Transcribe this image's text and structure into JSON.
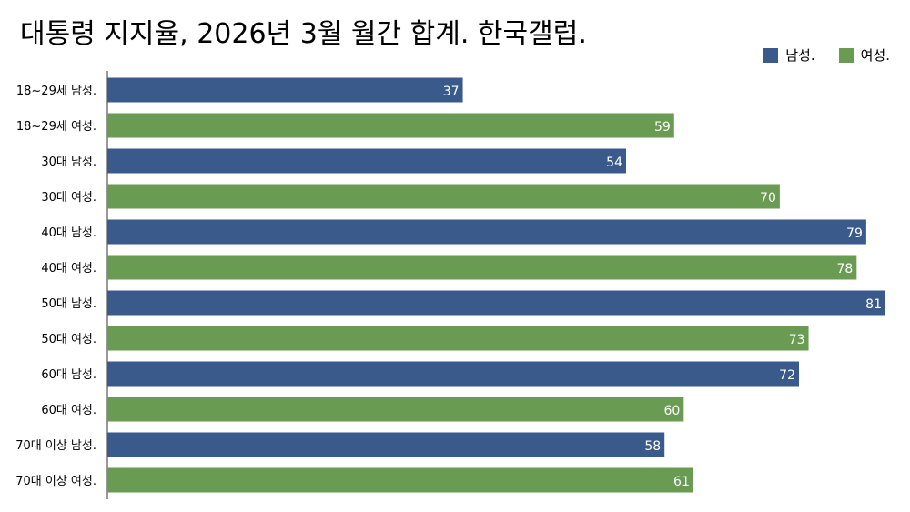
{
  "chart_data": {
    "type": "bar",
    "orientation": "horizontal",
    "title": "대통령 지지율, 2026년 3월 월간 합계. 한국갤럽.",
    "categories": [
      "18~29세 남성.",
      "18~29세 여성.",
      "30대 남성.",
      "30대 여성.",
      "40대 남성.",
      "40대 여성.",
      "50대 남성.",
      "50대 여성.",
      "60대 남성.",
      "60대 여성.",
      "70대 이상 남성.",
      "70대 이상 여성."
    ],
    "values": [
      37,
      59,
      54,
      70,
      79,
      78,
      81,
      73,
      72,
      60,
      58,
      61
    ],
    "bar_series": [
      "남성.",
      "여성.",
      "남성.",
      "여성.",
      "남성.",
      "여성.",
      "남성.",
      "여성.",
      "남성.",
      "여성.",
      "남성.",
      "여성."
    ],
    "legend": [
      {
        "name": "남성.",
        "color": "#3b5a8c"
      },
      {
        "name": "여성.",
        "color": "#6a9b52"
      }
    ],
    "legend_position": "top-right",
    "xlim": [
      0,
      81
    ],
    "grid": false,
    "data_labels": true
  }
}
